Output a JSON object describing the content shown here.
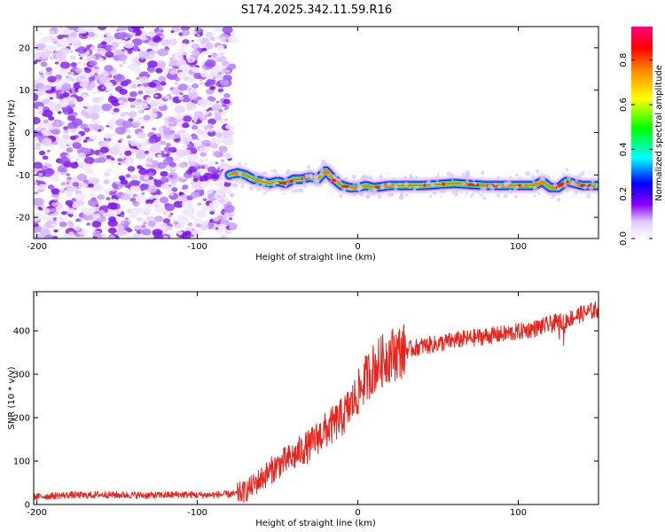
{
  "figure_title": "S174.2025.342.11.59.R16",
  "chart_data": [
    {
      "type": "heatmap",
      "title": "S174.2025.342.11.59.R16",
      "xlabel": "Height of straight line (km)",
      "ylabel": "Frequency (Hz)",
      "xlim": [
        -202,
        150
      ],
      "ylim": [
        -25,
        25
      ],
      "xticks": [
        -200,
        -100,
        0,
        100
      ],
      "xtick_labels": [
        "-200",
        "-100",
        "0",
        "100"
      ],
      "yticks": [
        -20,
        -10,
        0,
        10,
        20
      ],
      "ytick_labels": [
        "-20",
        "-10",
        "0",
        "10",
        "20"
      ],
      "description_of_data": "Scattered weak noise for heights below about -80 km; a narrow horizontal band of high amplitude near -10 to -13 Hz from about -80 km to 150 km.",
      "ridge_frequency_hz": {
        "x": [
          -80,
          -75,
          -70,
          -65,
          -60,
          -55,
          -50,
          -45,
          -40,
          -35,
          -30,
          -25,
          -20,
          -15,
          -10,
          -5,
          0,
          5,
          10,
          20,
          40,
          60,
          80,
          100,
          110,
          115,
          120,
          125,
          130,
          140,
          150
        ],
        "y": [
          -10,
          -9.5,
          -10,
          -11,
          -11.5,
          -12,
          -11.5,
          -12,
          -11,
          -11,
          -10.5,
          -11,
          -9,
          -11,
          -12.5,
          -13,
          -13,
          -12.5,
          -13,
          -12.5,
          -12.5,
          -12,
          -12.5,
          -12.5,
          -12.5,
          -11.5,
          -13,
          -13,
          -11.5,
          -12.5,
          -12.5
        ]
      },
      "colorbar": {
        "label": "Normalized spectral amplitude",
        "range": [
          0,
          0.95
        ],
        "ticks": [
          0.0,
          0.2,
          0.4,
          0.6,
          0.8
        ],
        "tick_labels": [
          "0.0",
          "0.2",
          "0.4",
          "0.6",
          "0.8"
        ],
        "colormap": [
          "#ffffff",
          "#e0c8ff",
          "#8a00ff",
          "#0000ff",
          "#00ffff",
          "#00ff00",
          "#ffff00",
          "#ff7f00",
          "#ff0000",
          "#ff007f"
        ]
      }
    },
    {
      "type": "line",
      "xlabel": "Height of straight line (km)",
      "ylabel": "SNR (10 * v/v)",
      "xlim": [
        -202,
        150
      ],
      "ylim": [
        0,
        490
      ],
      "xticks": [
        -200,
        -100,
        0,
        100
      ],
      "xtick_labels": [
        "-200",
        "-100",
        "0",
        "100"
      ],
      "yticks": [
        0,
        100,
        200,
        300,
        400
      ],
      "ytick_labels": [
        "0",
        "100",
        "200",
        "300",
        "400"
      ],
      "series": [
        {
          "name": "SNR",
          "color": "#e8231b",
          "x": [
            -202,
            -190,
            -180,
            -170,
            -160,
            -150,
            -140,
            -130,
            -120,
            -110,
            -100,
            -90,
            -80,
            -75,
            -70,
            -65,
            -60,
            -55,
            -50,
            -45,
            -40,
            -35,
            -30,
            -25,
            -20,
            -15,
            -10,
            -5,
            0,
            5,
            10,
            15,
            20,
            25,
            30,
            40,
            50,
            60,
            70,
            80,
            90,
            100,
            110,
            120,
            130,
            140,
            150
          ],
          "y": [
            18,
            20,
            22,
            21,
            23,
            22,
            22,
            21,
            22,
            23,
            22,
            22,
            24,
            25,
            30,
            45,
            60,
            75,
            90,
            100,
            110,
            125,
            135,
            155,
            170,
            185,
            200,
            225,
            255,
            290,
            315,
            330,
            345,
            350,
            355,
            365,
            370,
            378,
            383,
            388,
            392,
            398,
            405,
            415,
            425,
            440,
            450
          ]
        }
      ]
    }
  ]
}
